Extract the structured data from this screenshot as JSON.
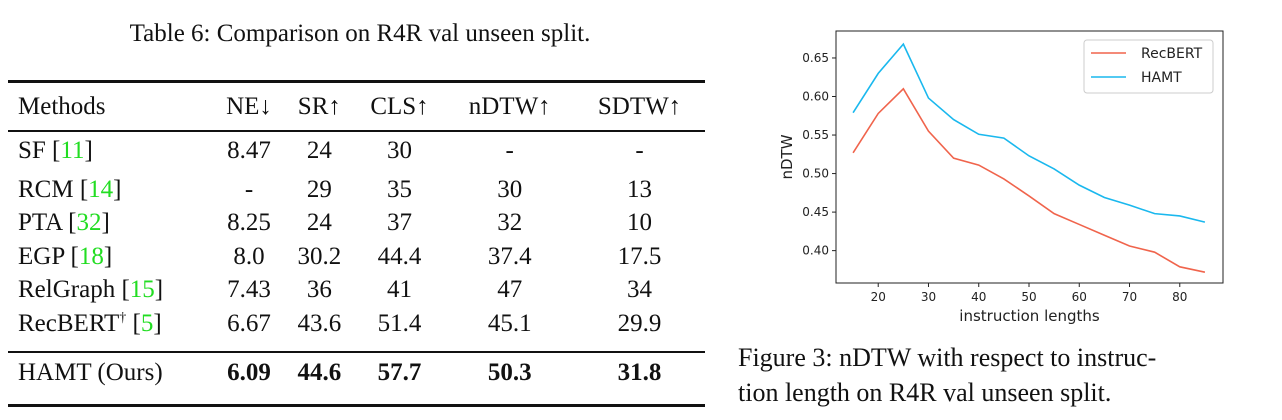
{
  "table": {
    "caption": "Table 6: Comparison on R4R val unseen split.",
    "headers": [
      "Methods",
      "NE↓",
      "SR↑",
      "CLS↑",
      "nDTW↑",
      "SDTW↑"
    ],
    "rows": [
      {
        "method": "SF [",
        "cite": "11",
        "sup": "",
        "values": [
          "8.47",
          "24",
          "30",
          "-",
          "-"
        ]
      },
      {
        "method": "RCM [",
        "cite": "14",
        "sup": "",
        "values": [
          "-",
          "29",
          "35",
          "30",
          "13"
        ]
      },
      {
        "method": "PTA [",
        "cite": "32",
        "sup": "",
        "values": [
          "8.25",
          "24",
          "37",
          "32",
          "10"
        ]
      },
      {
        "method": "EGP [",
        "cite": "18",
        "sup": "",
        "values": [
          "8.0",
          "30.2",
          "44.4",
          "37.4",
          "17.5"
        ]
      },
      {
        "method": "RelGraph [",
        "cite": "15",
        "sup": "",
        "values": [
          "7.43",
          "36",
          "41",
          "47",
          "34"
        ]
      },
      {
        "method": "RecBERT",
        "cite": "5",
        "sup": "†",
        "values": [
          "6.67",
          "43.6",
          "51.4",
          "45.1",
          "29.9"
        ]
      }
    ],
    "ours": {
      "method": "HAMT (Ours)",
      "values": [
        "6.09",
        "44.6",
        "57.7",
        "50.3",
        "31.8"
      ]
    },
    "cite_color": "#22dd22"
  },
  "figure": {
    "caption_line1": "Figure 3: nDTW with respect to instruc-",
    "caption_line2": "tion length on R4R val unseen split."
  },
  "chart_data": {
    "type": "line",
    "xlabel": "instruction lengths",
    "ylabel": "nDTW",
    "x": [
      15,
      20,
      25,
      30,
      35,
      40,
      45,
      50,
      55,
      60,
      65,
      70,
      75,
      80,
      85
    ],
    "xlim": [
      11.6,
      88.6
    ],
    "ylim": [
      0.358,
      0.685
    ],
    "xticks": [
      "20",
      "30",
      "40",
      "50",
      "60",
      "70",
      "80"
    ],
    "yticks": [
      "0.40",
      "0.45",
      "0.50",
      "0.55",
      "0.60",
      "0.65"
    ],
    "grid": false,
    "legend": "top-right",
    "series": [
      {
        "name": "RecBERT",
        "color": "#f0644c",
        "values": [
          0.527,
          0.578,
          0.61,
          0.555,
          0.52,
          0.511,
          0.493,
          0.471,
          0.448,
          0.434,
          0.42,
          0.406,
          0.398,
          0.379,
          0.372
        ]
      },
      {
        "name": "HAMT",
        "color": "#1ab8ee",
        "values": [
          0.579,
          0.63,
          0.668,
          0.598,
          0.57,
          0.551,
          0.546,
          0.523,
          0.506,
          0.485,
          0.469,
          0.459,
          0.448,
          0.445,
          0.437
        ]
      }
    ]
  }
}
